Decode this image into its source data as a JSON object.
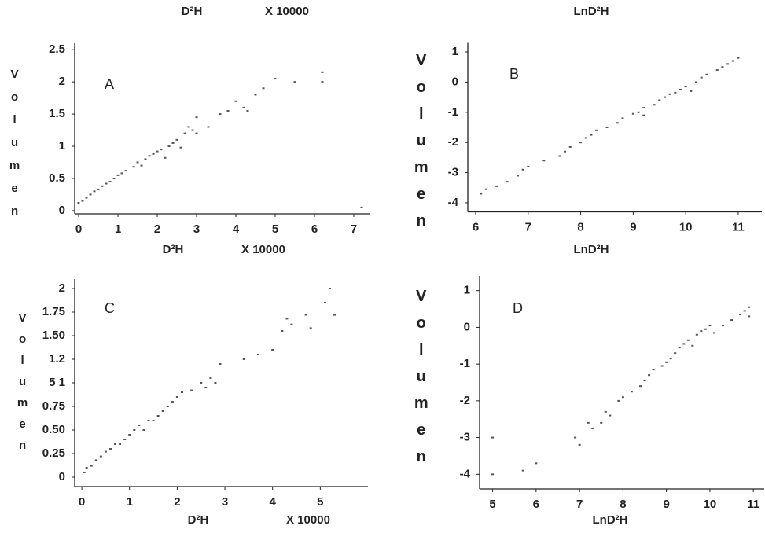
{
  "captions": [
    "D²H",
    "X 10000",
    "LnD²H"
  ],
  "chart_data": [
    {
      "type": "scatter",
      "label": "A",
      "ylabel": "Volumen",
      "xlabel": "D²H",
      "xlabel_factor": "X 10000",
      "color": "#555555",
      "xlim": [
        -0.1,
        7.4
      ],
      "ylim": [
        -0.05,
        2.6
      ],
      "xticks": [
        0,
        1,
        2,
        3,
        4,
        5,
        6,
        7
      ],
      "yticks": [
        0,
        0.5,
        1,
        1.5,
        2,
        2.5
      ],
      "x": [
        0.0,
        0.1,
        0.2,
        0.3,
        0.4,
        0.5,
        0.6,
        0.7,
        0.8,
        0.9,
        1.0,
        1.1,
        1.2,
        1.4,
        1.5,
        1.6,
        1.7,
        1.8,
        1.9,
        2.0,
        2.1,
        2.2,
        2.3,
        2.4,
        2.5,
        2.6,
        2.7,
        2.8,
        2.9,
        3.0,
        3.0,
        3.3,
        3.6,
        3.8,
        4.0,
        4.2,
        4.3,
        4.5,
        4.7,
        5.0,
        5.5,
        6.2,
        6.2,
        7.2
      ],
      "values": [
        0.12,
        0.15,
        0.2,
        0.25,
        0.3,
        0.33,
        0.38,
        0.42,
        0.45,
        0.5,
        0.55,
        0.58,
        0.62,
        0.68,
        0.75,
        0.7,
        0.8,
        0.85,
        0.88,
        0.92,
        0.95,
        0.82,
        1.0,
        1.05,
        1.1,
        0.98,
        1.2,
        1.3,
        1.25,
        1.45,
        1.2,
        1.3,
        1.5,
        1.55,
        1.7,
        1.6,
        1.55,
        1.8,
        1.9,
        2.05,
        2.0,
        2.15,
        2.0,
        0.05
      ]
    },
    {
      "type": "scatter",
      "label": "B",
      "ylabel": "Volumen",
      "xlabel": "LnD²H",
      "color": "#555555",
      "xlim": [
        5.85,
        11.45
      ],
      "ylim": [
        -4.3,
        1.3
      ],
      "xticks": [
        6,
        7,
        8,
        9,
        10,
        11
      ],
      "yticks": [
        1,
        0,
        -1,
        -2,
        -3,
        -4
      ],
      "x": [
        6.1,
        6.2,
        6.4,
        6.6,
        6.8,
        6.9,
        7.0,
        7.3,
        7.6,
        7.7,
        7.8,
        8.0,
        8.1,
        8.2,
        8.3,
        8.5,
        8.7,
        8.8,
        9.0,
        9.1,
        9.2,
        9.4,
        9.5,
        9.6,
        9.8,
        9.9,
        10.0,
        10.2,
        10.3,
        10.4,
        10.6,
        10.7,
        10.8,
        10.9,
        11.0,
        9.2,
        9.7,
        10.1
      ],
      "values": [
        -3.7,
        -3.55,
        -3.45,
        -3.3,
        -3.1,
        -2.9,
        -2.8,
        -2.6,
        -2.45,
        -2.3,
        -2.15,
        -2.0,
        -1.85,
        -1.75,
        -1.6,
        -1.5,
        -1.35,
        -1.2,
        -1.05,
        -1.0,
        -0.85,
        -0.75,
        -0.6,
        -0.5,
        -0.35,
        -0.25,
        -0.15,
        0.0,
        0.15,
        0.25,
        0.4,
        0.5,
        0.6,
        0.7,
        0.8,
        -1.1,
        -0.4,
        -0.3
      ]
    },
    {
      "type": "scatter",
      "label": "C",
      "ylabel": "Volumen",
      "xlabel": "D²H",
      "xlabel_factor": "X 10000",
      "color": "#555555",
      "xlim": [
        -0.15,
        6.0
      ],
      "ylim": [
        -0.1,
        2.1
      ],
      "xticks": [
        0,
        1,
        2,
        3,
        4,
        5
      ],
      "yticks": [
        0,
        0.25,
        {
          "value": 0.5,
          "label": "0.50"
        },
        0.75,
        {
          "value": 1,
          "label": "5 1"
        },
        {
          "value": 1.25,
          "label": "1.2"
        },
        {
          "value": 1.5,
          "label": "1.50"
        },
        1.75,
        2
      ],
      "x": [
        0.05,
        0.1,
        0.2,
        0.3,
        0.4,
        0.5,
        0.6,
        0.7,
        0.8,
        0.9,
        1.0,
        1.1,
        1.2,
        1.3,
        1.4,
        1.5,
        1.6,
        1.7,
        1.8,
        1.9,
        2.0,
        2.1,
        2.3,
        2.5,
        2.6,
        2.7,
        2.8,
        2.9,
        3.4,
        3.7,
        4.0,
        4.2,
        4.3,
        4.4,
        4.7,
        4.8,
        5.1,
        5.2,
        5.3
      ],
      "values": [
        0.05,
        0.1,
        0.12,
        0.18,
        0.22,
        0.27,
        0.3,
        0.35,
        0.35,
        0.4,
        0.45,
        0.5,
        0.55,
        0.5,
        0.6,
        0.6,
        0.65,
        0.7,
        0.75,
        0.8,
        0.85,
        0.9,
        0.92,
        1.0,
        0.95,
        1.05,
        1.0,
        1.2,
        1.25,
        1.3,
        1.35,
        1.55,
        1.68,
        1.62,
        1.72,
        1.58,
        1.85,
        2.0,
        1.72
      ]
    },
    {
      "type": "scatter",
      "label": "D",
      "ylabel": "Volumen",
      "xlabel": "LnD²H",
      "color": "#555555",
      "xlim": [
        4.7,
        11.25
      ],
      "ylim": [
        -4.4,
        1.4
      ],
      "xticks": [
        5,
        6,
        7,
        8,
        9,
        10,
        11
      ],
      "yticks": [
        1,
        0,
        -1,
        -2,
        -3,
        -4
      ],
      "x": [
        5.0,
        5.0,
        5.7,
        6.0,
        6.9,
        7.0,
        7.2,
        7.3,
        7.5,
        7.6,
        7.7,
        7.9,
        8.0,
        8.2,
        8.4,
        8.5,
        8.6,
        8.7,
        8.9,
        9.0,
        9.1,
        9.2,
        9.3,
        9.4,
        9.5,
        9.6,
        9.7,
        9.8,
        9.9,
        10.0,
        10.1,
        10.3,
        10.5,
        10.7,
        10.8,
        10.9,
        10.9
      ],
      "values": [
        -3.0,
        -4.0,
        -3.9,
        -3.7,
        -3.0,
        -3.2,
        -2.6,
        -2.75,
        -2.6,
        -2.3,
        -2.4,
        -2.0,
        -1.9,
        -1.75,
        -1.6,
        -1.45,
        -1.3,
        -1.15,
        -1.05,
        -0.95,
        -0.85,
        -0.7,
        -0.55,
        -0.45,
        -0.35,
        -0.5,
        -0.2,
        -0.1,
        -0.05,
        0.05,
        -0.15,
        0.05,
        0.2,
        0.35,
        0.45,
        0.55,
        0.3
      ]
    }
  ]
}
